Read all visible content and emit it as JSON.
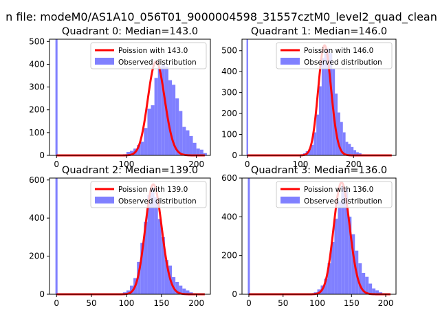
{
  "figure_title": "n file: modeM0/AS1A10_056T01_9000004598_31557cztM0_level2_quad_clean",
  "colors": {
    "fit": "#ff0000",
    "hist": "#8080ff",
    "axis": "#000000"
  },
  "chart_data": [
    {
      "type": "bar",
      "title": "Quadrant 0: Median=143.0",
      "legend": [
        "Poission with 143.0",
        "Observed distribution"
      ],
      "legend_position": "top-right",
      "xlim": [
        -10,
        220
      ],
      "ylim": [
        0,
        510
      ],
      "xticks": [
        0,
        100,
        200
      ],
      "yticks": [
        0,
        100,
        200,
        300,
        400,
        500
      ],
      "zero_bar": 510,
      "median": 143,
      "bins": {
        "start": 95,
        "width": 5,
        "values": [
          5,
          15,
          20,
          30,
          45,
          60,
          120,
          205,
          220,
          340,
          390,
          400,
          390,
          330,
          310,
          250,
          195,
          125,
          110,
          85,
          55,
          30,
          25,
          10
        ]
      }
    },
    {
      "type": "bar",
      "title": "Quadrant 1: Median=146.0",
      "legend": [
        "Poission with 146.0",
        "Observed distribution"
      ],
      "legend_position": "top-right",
      "xlim": [
        -10,
        280
      ],
      "ylim": [
        0,
        555
      ],
      "xticks": [
        0,
        100,
        200
      ],
      "yticks": [
        0,
        100,
        200,
        300,
        400,
        500
      ],
      "zero_bar": 555,
      "median": 146,
      "bins": {
        "start": 95,
        "width": 5,
        "values": [
          2,
          5,
          10,
          20,
          30,
          50,
          110,
          195,
          330,
          465,
          500,
          510,
          490,
          415,
          295,
          205,
          160,
          110,
          65,
          55,
          40,
          25,
          15,
          10,
          5,
          3,
          2
        ]
      }
    },
    {
      "type": "bar",
      "title": "Quadrant 2: Median=139.0",
      "legend": [
        "Poission with 139.0",
        "Observed distribution"
      ],
      "legend_position": "top-right",
      "xlim": [
        -10,
        220
      ],
      "ylim": [
        0,
        610
      ],
      "xticks": [
        0,
        50,
        100,
        150,
        200
      ],
      "yticks": [
        0,
        200,
        400,
        600
      ],
      "zero_bar": 610,
      "median": 139,
      "bins": {
        "start": 85,
        "width": 5,
        "values": [
          3,
          5,
          10,
          20,
          45,
          85,
          170,
          270,
          380,
          520,
          560,
          510,
          395,
          300,
          180,
          150,
          90,
          65,
          45,
          30,
          20,
          10,
          5
        ]
      }
    },
    {
      "type": "bar",
      "title": "Quadrant 3: Median=136.0",
      "legend": [
        "Poission with 136.0",
        "Observed distribution"
      ],
      "legend_position": "top-right",
      "xlim": [
        -10,
        215
      ],
      "ylim": [
        0,
        600
      ],
      "xticks": [
        0,
        50,
        100,
        150,
        200
      ],
      "yticks": [
        0,
        200,
        400,
        600
      ],
      "zero_bar": 600,
      "median": 136,
      "bins": {
        "start": 85,
        "width": 5,
        "values": [
          3,
          5,
          10,
          25,
          45,
          80,
          160,
          270,
          390,
          480,
          560,
          545,
          400,
          310,
          225,
          160,
          110,
          90,
          55,
          30,
          20,
          10,
          5
        ]
      }
    }
  ]
}
